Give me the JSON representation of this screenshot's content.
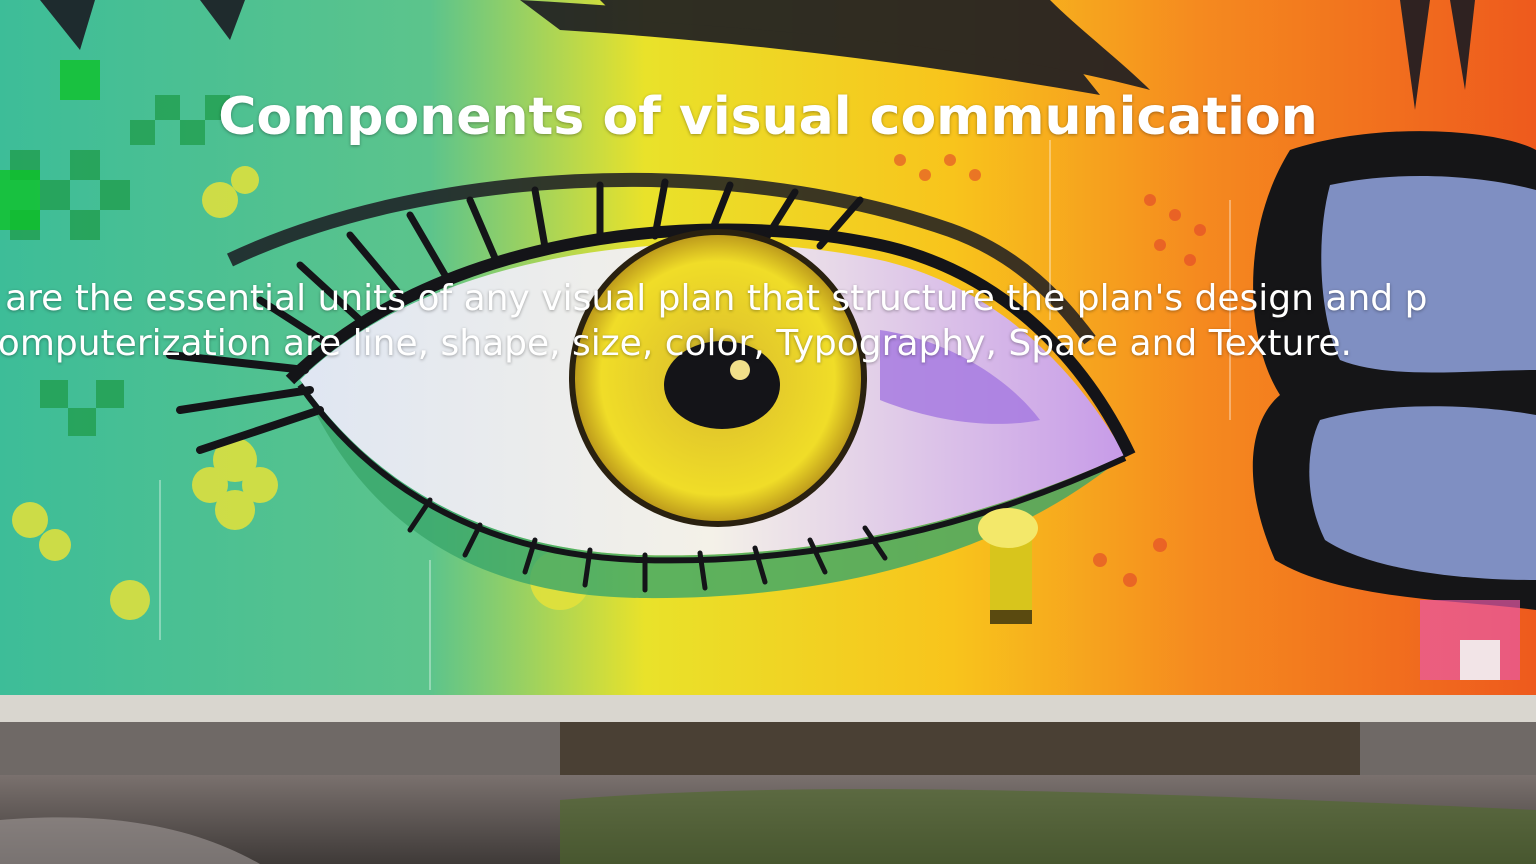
{
  "slide": {
    "title": "Components of visual communication",
    "body_lines": [
      "hip are the essential units of any visual plan that structure the plan's design and p",
      "computerization are line, shape, size, color, Typography, Space and Texture."
    ]
  },
  "background": {
    "subject": "graffiti-eye-mural",
    "colors": {
      "teal": "#3fb8a0",
      "green": "#2bb24c",
      "yellow": "#f2e21b",
      "orange": "#f58a1f",
      "red_orange": "#ee5a1d",
      "purple": "#a77be0",
      "black": "#1a1a1a",
      "concrete": "#6b6260"
    }
  }
}
